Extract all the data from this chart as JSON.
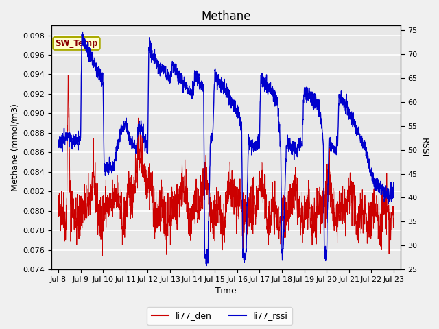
{
  "title": "Methane",
  "ylabel_left": "Methane (mmol/m3)",
  "ylabel_right": "RSSI",
  "xlabel": "Time",
  "ylim_left": [
    0.074,
    0.099
  ],
  "ylim_right": [
    25,
    76
  ],
  "yticks_left": [
    0.074,
    0.076,
    0.078,
    0.08,
    0.082,
    0.084,
    0.086,
    0.088,
    0.09,
    0.092,
    0.094,
    0.096,
    0.098
  ],
  "yticks_right": [
    25,
    30,
    35,
    40,
    45,
    50,
    55,
    60,
    65,
    70,
    75
  ],
  "xtick_labels": [
    "Jul 8",
    "Jul 9",
    "Jul 10",
    "Jul 11",
    "Jul 12",
    "Jul 13",
    "Jul 14",
    "Jul 15",
    "Jul 16",
    "Jul 17",
    "Jul 18",
    "Jul 19",
    "Jul 20",
    "Jul 21",
    "Jul 22",
    "Jul 23"
  ],
  "color_red": "#CC0000",
  "color_blue": "#0000CC",
  "legend_label_red": "li77_den",
  "legend_label_blue": "li77_rssi",
  "sw_temp_label": "SW_Temp",
  "sw_temp_bg": "#FFFFCC",
  "sw_temp_border": "#AAAA00",
  "plot_bg": "#E8E8E8",
  "fig_bg": "#F0F0F0",
  "grid_color": "#FFFFFF",
  "title_fontsize": 12,
  "label_fontsize": 9,
  "tick_fontsize": 8,
  "legend_fontsize": 9
}
